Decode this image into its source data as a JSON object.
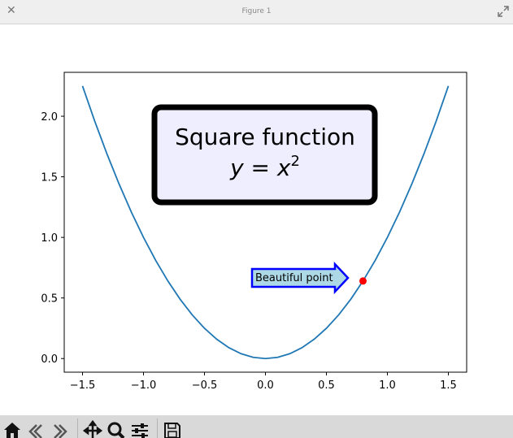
{
  "window": {
    "title": "Figure 1"
  },
  "toolbar": {
    "buttons": [
      {
        "icon": "home-icon"
      },
      {
        "icon": "back-icon"
      },
      {
        "icon": "forward-icon"
      },
      {
        "icon": "pan-icon"
      },
      {
        "icon": "zoom-icon"
      },
      {
        "icon": "configure-icon"
      },
      {
        "icon": "save-icon"
      }
    ]
  },
  "chart_data": {
    "type": "line",
    "x": [
      -1.5,
      -1.4,
      -1.3,
      -1.2,
      -1.1,
      -1.0,
      -0.9,
      -0.8,
      -0.7,
      -0.6,
      -0.5,
      -0.4,
      -0.3,
      -0.2,
      -0.1,
      0.0,
      0.1,
      0.2,
      0.3,
      0.4,
      0.5,
      0.6,
      0.7,
      0.8,
      0.9,
      1.0,
      1.1,
      1.2,
      1.3,
      1.4,
      1.5
    ],
    "series": [
      {
        "values": [
          2.25,
          1.96,
          1.69,
          1.44,
          1.21,
          1.0,
          0.81,
          0.64,
          0.49,
          0.36,
          0.25,
          0.16,
          0.09,
          0.04,
          0.01,
          0.0,
          0.01,
          0.04,
          0.09,
          0.16,
          0.25,
          0.36,
          0.49,
          0.64,
          0.81,
          1.0,
          1.21,
          1.44,
          1.69,
          1.96,
          2.25
        ],
        "color": "#1f77b4"
      }
    ],
    "xlim": [
      -1.65,
      1.65
    ],
    "ylim": [
      -0.1125,
      2.3625
    ],
    "xticks": [
      -1.5,
      -1.0,
      -0.5,
      0.0,
      0.5,
      1.0,
      1.5
    ],
    "xtick_labels": [
      "−1.5",
      "−1.0",
      "−0.5",
      "0.0",
      "0.5",
      "1.0",
      "1.5"
    ],
    "yticks": [
      0.0,
      0.5,
      1.0,
      1.5,
      2.0
    ],
    "ytick_labels": [
      "0.0",
      "0.5",
      "1.0",
      "1.5",
      "2.0"
    ],
    "grid": false,
    "point": {
      "x": 0.8,
      "y": 0.64,
      "color": "#ff0000"
    },
    "text_box": {
      "line1": "Square function",
      "line2_var": "y",
      "line2_eq": " = ",
      "line2_base": "x",
      "line2_exp": "2",
      "face": "#eeeeff",
      "edge": "#000000"
    },
    "annotation": {
      "text": "Beautiful point",
      "face": "#add8e6",
      "edge": "#0000ff"
    }
  }
}
